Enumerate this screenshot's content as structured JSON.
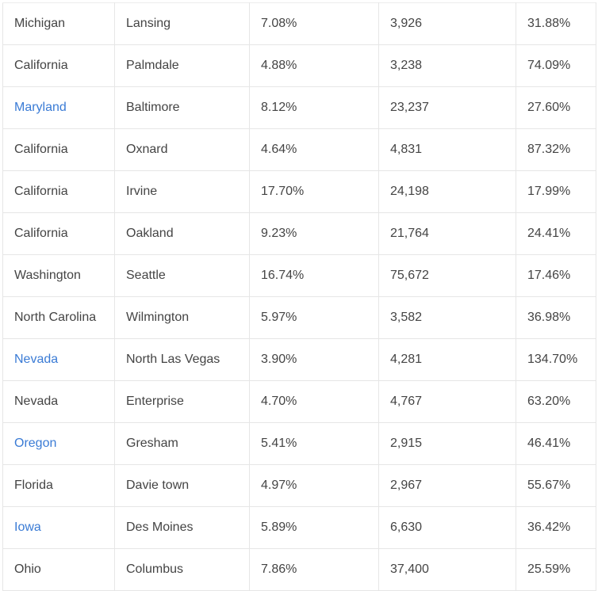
{
  "table": {
    "rows": [
      [
        "Michigan",
        "Lansing",
        "7.08%",
        "3,926",
        "31.88%"
      ],
      [
        "California",
        "Palmdale",
        "4.88%",
        "3,238",
        "74.09%"
      ],
      [
        "Maryland",
        "Baltimore",
        "8.12%",
        "23,237",
        "27.60%"
      ],
      [
        "California",
        "Oxnard",
        "4.64%",
        "4,831",
        "87.32%"
      ],
      [
        "California",
        "Irvine",
        "17.70%",
        "24,198",
        "17.99%"
      ],
      [
        "California",
        "Oakland",
        "9.23%",
        "21,764",
        "24.41%"
      ],
      [
        "Washington",
        "Seattle",
        "16.74%",
        "75,672",
        "17.46%"
      ],
      [
        "North Carolina",
        "Wilmington",
        "5.97%",
        "3,582",
        "36.98%"
      ],
      [
        "Nevada",
        "North Las Vegas",
        "3.90%",
        "4,281",
        "134.70%"
      ],
      [
        "Nevada",
        "Enterprise",
        "4.70%",
        "4,767",
        "63.20%"
      ],
      [
        "Oregon",
        "Gresham",
        "5.41%",
        "2,915",
        "46.41%"
      ],
      [
        "Florida",
        "Davie town",
        "4.97%",
        "2,967",
        "55.67%"
      ],
      [
        "Iowa",
        "Des Moines",
        "5.89%",
        "6,630",
        "36.42%"
      ],
      [
        "Ohio",
        "Columbus",
        "7.86%",
        "37,400",
        "25.59%"
      ]
    ]
  }
}
